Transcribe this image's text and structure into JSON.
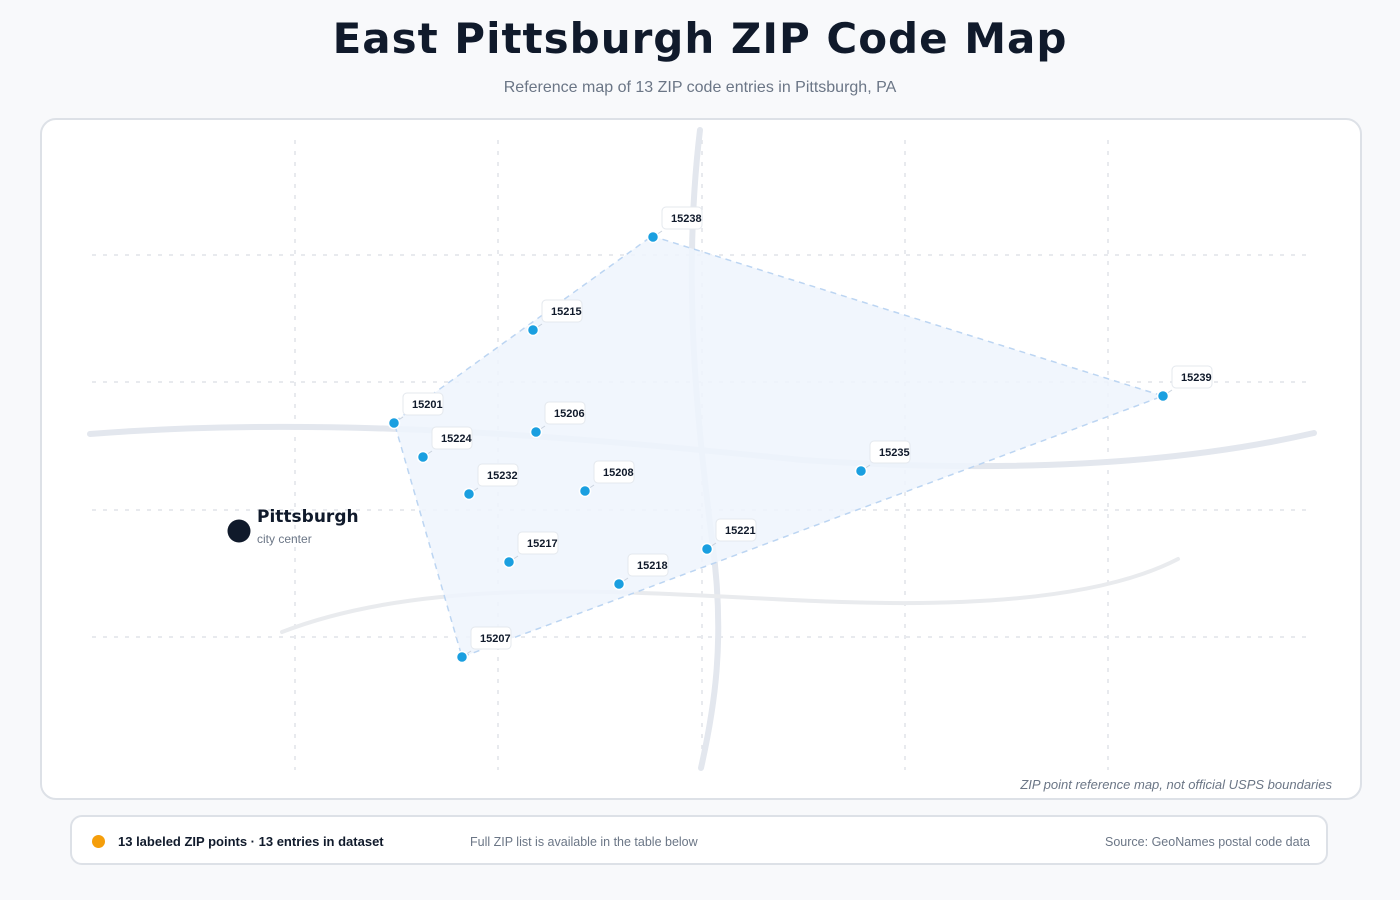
{
  "header": {
    "title": "East Pittsburgh ZIP Code Map",
    "subtitle": "Reference map of 13 ZIP code entries in Pittsburgh, PA"
  },
  "map": {
    "city": {
      "name": "Pittsburgh",
      "caption": "city center"
    },
    "disclaimer": "ZIP point reference map, not official USPS boundaries",
    "colors": {
      "point": "#1a9fe0",
      "area_fill": "#eef4fd",
      "area_stroke": "#bcd5f2",
      "road_primary": "#e3e7ee",
      "road_secondary": "#e9ebee",
      "grid": "#e1e4e9",
      "city_marker": "#101a2b"
    },
    "zip_points": [
      {
        "zip": "15238"
      },
      {
        "zip": "15215"
      },
      {
        "zip": "15239"
      },
      {
        "zip": "15201"
      },
      {
        "zip": "15206"
      },
      {
        "zip": "15224"
      },
      {
        "zip": "15235"
      },
      {
        "zip": "15232"
      },
      {
        "zip": "15208"
      },
      {
        "zip": "15221"
      },
      {
        "zip": "15217"
      },
      {
        "zip": "15218"
      },
      {
        "zip": "15207"
      }
    ]
  },
  "footer": {
    "legend_color": "#f59e0b",
    "legend_text": "13 labeled ZIP points · 13 entries in dataset",
    "note": "Full ZIP list is available in the table below",
    "source": "Source: GeoNames postal code data"
  }
}
